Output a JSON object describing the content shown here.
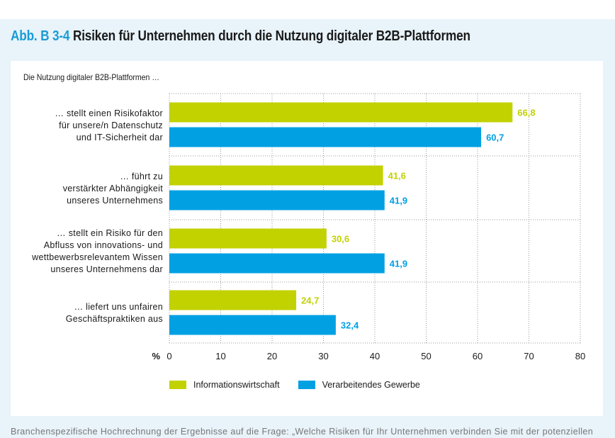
{
  "header": {
    "figure_prefix": "Abb. B 3-4",
    "figure_title": "Risiken für Unternehmen durch die Nutzung digitaler B2B-Plattformen"
  },
  "footnote": "Branchenspezifische Hochrechnung der Ergebnisse auf die Frage: „Welche Risiken für Ihr Unternehmen verbinden Sie mit der potenziellen",
  "colors": {
    "series1": "#c2d100",
    "series2": "#00a0e3",
    "prefix": "#1a9bd7",
    "grid": "#999999"
  },
  "chart_data": {
    "type": "bar",
    "orientation": "horizontal",
    "title": "Die Nutzung digitaler B2B-Plattformen …",
    "xlabel": "%",
    "ylabel": "",
    "xlim": [
      0,
      80
    ],
    "xticks": [
      0,
      10,
      20,
      30,
      40,
      50,
      60,
      70,
      80
    ],
    "xtick_labels": [
      "0",
      "10",
      "20",
      "30",
      "40",
      "50",
      "60",
      "70",
      "80"
    ],
    "grid": true,
    "legend_position": "bottom-left",
    "categories": [
      [
        "… stellt einen Risikofaktor",
        "für unsere/n Datenschutz",
        "und IT-Sicherheit dar"
      ],
      [
        "… führt zu",
        "verstärkter Abhängigkeit",
        "unseres Unternehmens"
      ],
      [
        "… stellt ein Risiko für den",
        "Abfluss von innovations- und",
        "wettbewerbsrelevantem Wissen",
        "unseres Unternehmens dar"
      ],
      [
        "… liefert uns unfairen",
        "Geschäftspraktiken aus"
      ]
    ],
    "series": [
      {
        "name": "Informationswirtschaft",
        "values": [
          66.8,
          41.6,
          30.6,
          24.7
        ],
        "labels": [
          "66,8",
          "41,6",
          "30,6",
          "24,7"
        ]
      },
      {
        "name": "Verarbeitendes Gewerbe",
        "values": [
          60.7,
          41.9,
          41.9,
          32.4
        ],
        "labels": [
          "60,7",
          "41,9",
          "41,9",
          "32,4"
        ]
      }
    ]
  }
}
